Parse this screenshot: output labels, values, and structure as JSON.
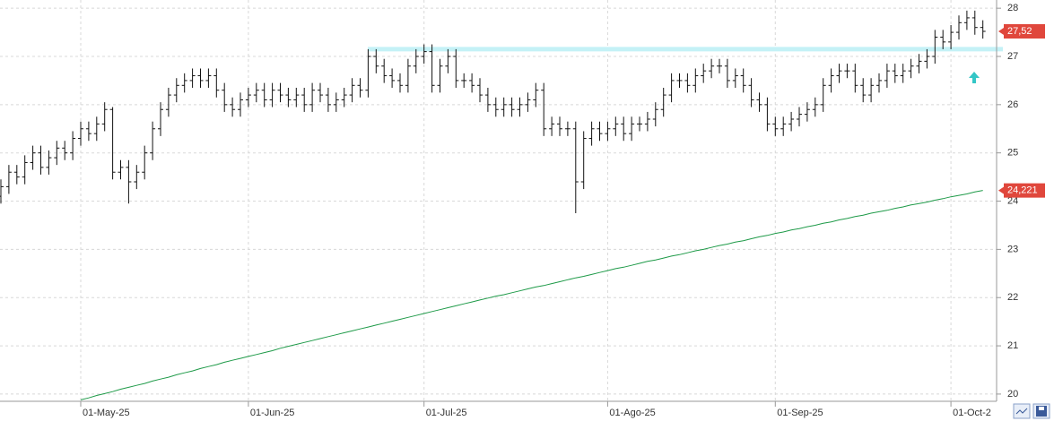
{
  "chart_data": {
    "type": "ohlc",
    "categories": [
      null,
      null,
      null,
      null,
      null,
      null,
      null,
      null,
      null,
      null,
      "01-May-25",
      null,
      null,
      null,
      null,
      null,
      null,
      null,
      null,
      null,
      null,
      null,
      null,
      null,
      null,
      null,
      null,
      null,
      null,
      null,
      null,
      "01-Jun-25",
      null,
      null,
      null,
      null,
      null,
      null,
      null,
      null,
      null,
      null,
      null,
      null,
      null,
      null,
      null,
      null,
      null,
      null,
      null,
      null,
      null,
      "01-Jul-25",
      null,
      null,
      null,
      null,
      null,
      null,
      null,
      null,
      null,
      null,
      null,
      null,
      null,
      null,
      null,
      null,
      null,
      null,
      null,
      null,
      null,
      null,
      "01-Ago-25",
      null,
      null,
      null,
      null,
      null,
      null,
      null,
      null,
      null,
      null,
      null,
      null,
      null,
      null,
      null,
      null,
      null,
      null,
      null,
      null,
      "01-Sep-25",
      null,
      null,
      null,
      null,
      null,
      null,
      null,
      null,
      null,
      null,
      null,
      null,
      null,
      null,
      null,
      null,
      null,
      null,
      null,
      null,
      null,
      "01-Oct-2",
      null,
      null,
      null,
      null
    ],
    "ohlc": {
      "color": "#111111",
      "open": [
        24.1,
        24.3,
        24.6,
        24.5,
        24.8,
        25.0,
        24.7,
        24.9,
        25.1,
        25.0,
        25.3,
        25.5,
        25.4,
        25.6,
        25.9,
        24.6,
        24.7,
        24.4,
        24.6,
        25.0,
        25.5,
        25.9,
        26.2,
        26.4,
        26.5,
        26.6,
        26.5,
        26.6,
        26.3,
        26.0,
        25.9,
        26.1,
        26.2,
        26.3,
        26.1,
        26.3,
        26.2,
        26.1,
        26.2,
        26.0,
        26.3,
        26.2,
        26.0,
        26.1,
        26.2,
        26.4,
        26.3,
        27.0,
        26.8,
        26.6,
        26.5,
        26.4,
        26.8,
        27.0,
        27.1,
        26.4,
        26.8,
        27.0,
        26.5,
        26.5,
        26.4,
        26.2,
        26.0,
        25.9,
        26.0,
        25.9,
        26.0,
        26.1,
        26.3,
        25.5,
        25.6,
        25.5,
        25.5,
        24.4,
        25.3,
        25.5,
        25.4,
        25.5,
        25.6,
        25.4,
        25.6,
        25.6,
        25.7,
        25.9,
        26.2,
        26.5,
        26.5,
        26.4,
        26.6,
        26.7,
        26.8,
        26.8,
        26.5,
        26.6,
        26.4,
        26.1,
        26.0,
        25.6,
        25.5,
        25.6,
        25.7,
        25.8,
        25.9,
        26.0,
        26.4,
        26.6,
        26.7,
        26.7,
        26.4,
        26.2,
        26.4,
        26.5,
        26.7,
        26.6,
        26.7,
        26.8,
        26.9,
        27.0,
        27.4,
        27.3,
        27.5,
        27.7,
        27.8,
        27.6
      ],
      "high": [
        24.45,
        24.75,
        24.75,
        24.95,
        25.15,
        25.15,
        25.05,
        25.25,
        25.25,
        25.45,
        25.65,
        25.65,
        25.75,
        26.05,
        25.95,
        24.85,
        24.85,
        24.75,
        25.15,
        25.65,
        26.05,
        26.35,
        26.55,
        26.65,
        26.75,
        26.75,
        26.75,
        26.75,
        26.45,
        26.15,
        26.25,
        26.35,
        26.45,
        26.45,
        26.45,
        26.45,
        26.35,
        26.35,
        26.35,
        26.45,
        26.45,
        26.35,
        26.25,
        26.35,
        26.55,
        26.55,
        27.15,
        27.15,
        26.95,
        26.75,
        26.65,
        26.95,
        27.15,
        27.25,
        27.25,
        26.95,
        27.15,
        27.15,
        26.65,
        26.65,
        26.55,
        26.35,
        26.15,
        26.15,
        26.15,
        26.15,
        26.25,
        26.45,
        26.45,
        25.75,
        25.75,
        25.65,
        25.65,
        25.45,
        25.65,
        25.65,
        25.65,
        25.75,
        25.75,
        25.75,
        25.75,
        25.85,
        26.05,
        26.35,
        26.65,
        26.65,
        26.65,
        26.75,
        26.85,
        26.95,
        26.95,
        26.95,
        26.75,
        26.75,
        26.55,
        26.25,
        26.15,
        25.75,
        25.75,
        25.85,
        25.95,
        26.05,
        26.15,
        26.55,
        26.75,
        26.85,
        26.85,
        26.85,
        26.55,
        26.55,
        26.65,
        26.85,
        26.85,
        26.85,
        26.95,
        27.05,
        27.15,
        27.55,
        27.55,
        27.65,
        27.85,
        27.95,
        27.95,
        27.75
      ],
      "low": [
        23.95,
        24.15,
        24.35,
        24.35,
        24.65,
        24.55,
        24.55,
        24.75,
        24.85,
        24.85,
        25.15,
        25.25,
        25.25,
        25.45,
        24.45,
        24.45,
        23.95,
        24.25,
        24.45,
        24.85,
        25.35,
        25.75,
        26.05,
        26.25,
        26.35,
        26.35,
        26.35,
        26.15,
        25.85,
        25.75,
        25.75,
        25.95,
        26.05,
        25.95,
        25.95,
        26.05,
        25.95,
        25.95,
        25.85,
        25.85,
        26.05,
        25.85,
        25.85,
        25.95,
        26.05,
        26.15,
        26.15,
        26.65,
        26.45,
        26.35,
        26.25,
        26.25,
        26.65,
        26.85,
        26.25,
        26.25,
        26.65,
        26.35,
        26.35,
        26.25,
        26.05,
        25.85,
        25.75,
        25.75,
        25.75,
        25.75,
        25.85,
        25.95,
        25.35,
        25.35,
        25.35,
        25.35,
        23.75,
        24.25,
        25.15,
        25.25,
        25.25,
        25.35,
        25.25,
        25.25,
        25.45,
        25.45,
        25.55,
        25.75,
        26.05,
        26.35,
        26.25,
        26.25,
        26.45,
        26.55,
        26.65,
        26.35,
        26.35,
        26.25,
        25.95,
        25.85,
        25.45,
        25.35,
        25.35,
        25.45,
        25.55,
        25.65,
        25.75,
        25.85,
        26.25,
        26.45,
        26.55,
        26.25,
        26.05,
        26.05,
        26.25,
        26.35,
        26.45,
        26.45,
        26.55,
        26.65,
        26.75,
        26.85,
        27.15,
        27.15,
        27.35,
        27.55,
        27.45,
        27.37
      ],
      "close": [
        24.3,
        24.6,
        24.5,
        24.8,
        25.0,
        24.7,
        24.9,
        25.1,
        25.0,
        25.3,
        25.5,
        25.4,
        25.6,
        25.9,
        24.6,
        24.7,
        24.4,
        24.6,
        25.0,
        25.5,
        25.9,
        26.2,
        26.4,
        26.5,
        26.6,
        26.5,
        26.6,
        26.3,
        26.0,
        25.9,
        26.1,
        26.2,
        26.3,
        26.1,
        26.3,
        26.2,
        26.1,
        26.2,
        26.0,
        26.3,
        26.2,
        26.0,
        26.1,
        26.2,
        26.4,
        26.3,
        27.0,
        26.8,
        26.6,
        26.5,
        26.4,
        26.8,
        27.0,
        27.1,
        26.4,
        26.8,
        27.0,
        26.5,
        26.5,
        26.4,
        26.2,
        26.0,
        25.9,
        26.0,
        25.9,
        26.0,
        26.1,
        26.3,
        25.5,
        25.6,
        25.5,
        25.5,
        24.4,
        25.3,
        25.5,
        25.4,
        25.5,
        25.6,
        25.4,
        25.6,
        25.6,
        25.7,
        25.9,
        26.2,
        26.5,
        26.5,
        26.4,
        26.6,
        26.7,
        26.8,
        26.8,
        26.5,
        26.6,
        26.4,
        26.1,
        26.0,
        25.6,
        25.5,
        25.6,
        25.7,
        25.8,
        25.9,
        26.0,
        26.4,
        26.6,
        26.7,
        26.7,
        26.4,
        26.2,
        26.4,
        26.5,
        26.7,
        26.6,
        26.7,
        26.8,
        26.9,
        27.0,
        27.4,
        27.3,
        27.5,
        27.7,
        27.8,
        27.6,
        27.52
      ]
    },
    "moving_average": {
      "color": "#1e9a48",
      "values": [
        null,
        null,
        null,
        null,
        null,
        null,
        null,
        null,
        null,
        null,
        19.88,
        19.92,
        19.97,
        20.01,
        20.05,
        20.1,
        20.14,
        20.18,
        20.22,
        20.27,
        20.31,
        20.35,
        20.4,
        20.44,
        20.48,
        20.53,
        20.57,
        20.61,
        20.66,
        20.7,
        20.74,
        20.78,
        20.82,
        20.86,
        20.9,
        20.95,
        20.99,
        21.03,
        21.07,
        21.11,
        21.15,
        21.19,
        21.23,
        21.27,
        21.31,
        21.35,
        21.39,
        21.43,
        21.47,
        21.51,
        21.55,
        21.59,
        21.63,
        21.67,
        21.71,
        21.75,
        21.79,
        21.83,
        21.87,
        21.91,
        21.95,
        21.99,
        22.03,
        22.06,
        22.1,
        22.14,
        22.18,
        22.22,
        22.25,
        22.29,
        22.33,
        22.37,
        22.41,
        22.44,
        22.48,
        22.52,
        22.56,
        22.6,
        22.63,
        22.67,
        22.71,
        22.75,
        22.78,
        22.82,
        22.86,
        22.89,
        22.93,
        22.97,
        23.0,
        23.04,
        23.08,
        23.11,
        23.15,
        23.18,
        23.22,
        23.26,
        23.29,
        23.33,
        23.36,
        23.4,
        23.43,
        23.47,
        23.5,
        23.54,
        23.57,
        23.61,
        23.64,
        23.68,
        23.71,
        23.75,
        23.78,
        23.81,
        23.85,
        23.88,
        23.92,
        23.95,
        23.98,
        24.02,
        24.05,
        24.09,
        24.12,
        24.15,
        24.19,
        24.221
      ]
    },
    "resistance": {
      "value": 27.15,
      "color": "#c4f1f6"
    },
    "last_price": {
      "value": 27.52,
      "label": "27,52",
      "color": "#e0473c"
    },
    "ma_last": {
      "value": 24.221,
      "label": "24,221",
      "color": "#e0473c"
    },
    "ylim": [
      19.85,
      28.17
    ],
    "yticks": [
      20,
      21,
      22,
      23,
      24,
      25,
      26,
      27,
      28
    ],
    "grid": true
  }
}
